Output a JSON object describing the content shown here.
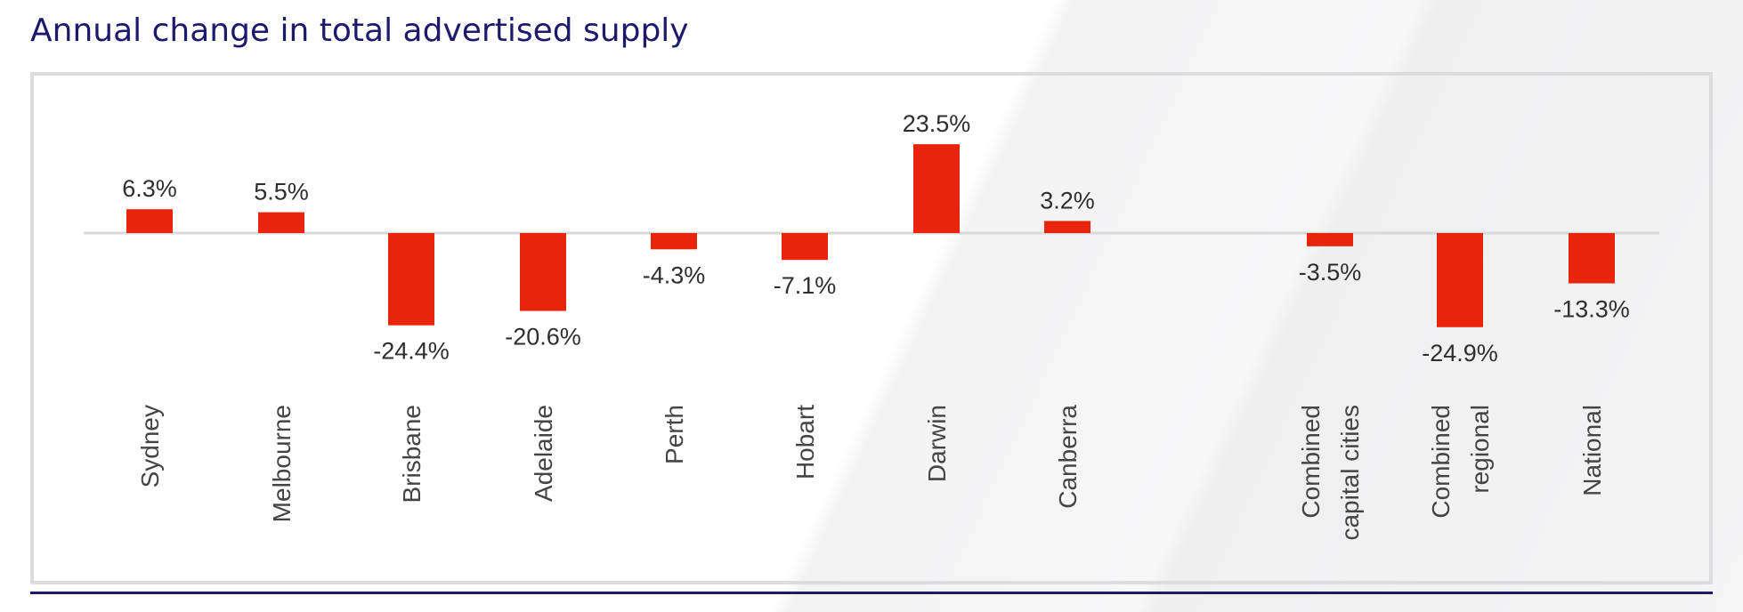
{
  "title": "Annual change in total advertised supply",
  "colors": {
    "bar": "#e8240a",
    "baseline": "#d8d8da",
    "title": "#1e1a6b"
  },
  "chart_data": {
    "type": "bar",
    "title": "Annual change in total advertised supply",
    "categories": [
      [
        "Sydney"
      ],
      [
        "Melbourne"
      ],
      [
        "Brisbane"
      ],
      [
        "Adelaide"
      ],
      [
        "Perth"
      ],
      [
        "Hobart"
      ],
      [
        "Darwin"
      ],
      [
        "Canberra"
      ],
      [
        "Combined",
        "capital cities"
      ],
      [
        "Combined",
        "regional"
      ],
      [
        "National"
      ]
    ],
    "values": [
      6.3,
      5.5,
      -24.4,
      -20.6,
      -4.3,
      -7.1,
      23.5,
      3.2,
      -3.5,
      -24.9,
      -13.3
    ],
    "labels": [
      "6.3%",
      "5.5%",
      "-24.4%",
      "-20.6%",
      "-4.3%",
      "-7.1%",
      "23.5%",
      "3.2%",
      "-3.5%",
      "-24.9%",
      "-13.3%"
    ],
    "unit": "%",
    "grid": false,
    "legend": "none"
  }
}
